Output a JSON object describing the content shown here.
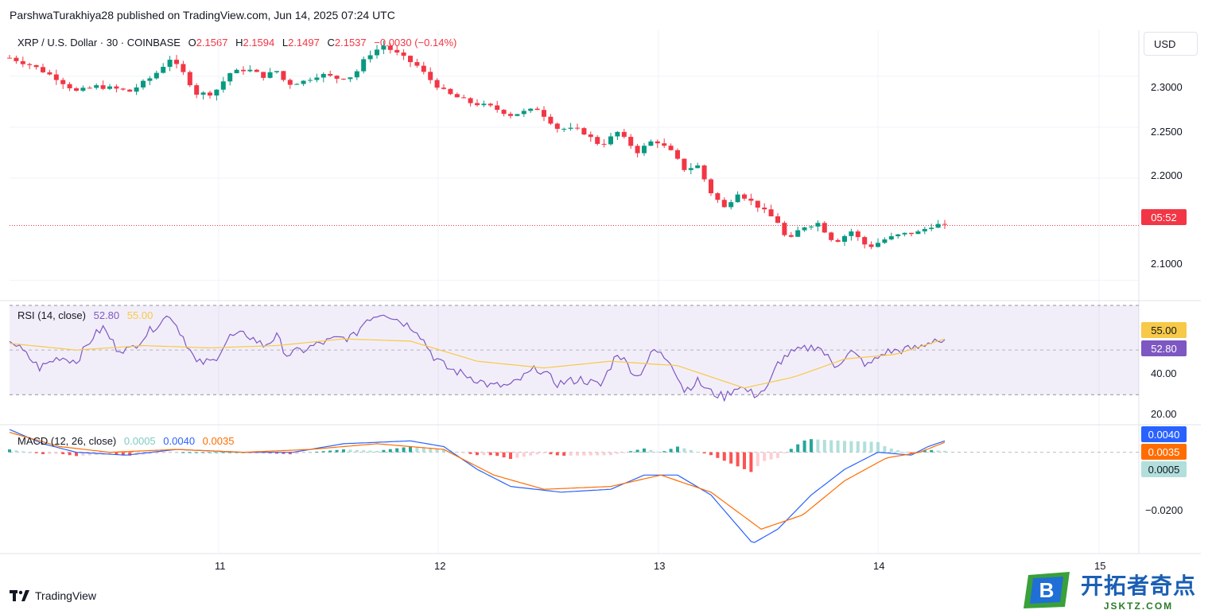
{
  "header": {
    "published": "ParshwaTurakhiya28 published on TradingView.com, Jun 14, 2025 07:24 UTC"
  },
  "symbol": {
    "name": "XRP / U.S. Dollar · 30 · COINBASE",
    "o_label": "O",
    "o_value": "2.1567",
    "h_label": "H",
    "h_value": "2.1594",
    "l_label": "L",
    "l_value": "2.1497",
    "c_label": "C",
    "c_value": "2.1537",
    "change": "−0.0030 (−0.14%)"
  },
  "currency": "USD",
  "countdown": "05:52",
  "rsi": {
    "label": "RSI (14, close)",
    "value": "52.80",
    "ma": "55.00",
    "axis": [
      "40.00",
      "20.00"
    ]
  },
  "macd": {
    "label": "MACD (12, 26, close)",
    "hist": "0.0005",
    "macd": "0.0040",
    "signal": "0.0035",
    "axis": [
      "−0.0200"
    ]
  },
  "price_axis": [
    "2.3000",
    "2.2500",
    "2.2000",
    "2.1000"
  ],
  "x_axis": [
    "11",
    "12",
    "13",
    "14",
    "15"
  ],
  "footer": {
    "brand": "TradingView"
  },
  "watermark": {
    "title": "开拓者奇点",
    "sub": "JSKTZ.COM",
    "logo_letter": "B"
  },
  "colors": {
    "up": "#089981",
    "down": "#f23645",
    "rsi": "#7e57c2",
    "rsi_ma": "#f7c948",
    "macd": "#2962ff",
    "signal": "#ff6d00"
  },
  "chart_data": [
    {
      "type": "candlestick",
      "title": "XRP / U.S. Dollar · 30 · COINBASE",
      "ylim": [
        2.08,
        2.345
      ],
      "x_ticks": [
        "11",
        "12",
        "13",
        "14",
        "15"
      ],
      "last_close": 2.1537,
      "close_path": [
        [
          0,
          2.318
        ],
        [
          14,
          2.31
        ],
        [
          28,
          2.298
        ],
        [
          40,
          2.285
        ],
        [
          52,
          2.29
        ],
        [
          62,
          2.288
        ],
        [
          72,
          2.285
        ],
        [
          86,
          2.3
        ],
        [
          96,
          2.317
        ],
        [
          104,
          2.303
        ],
        [
          112,
          2.283
        ],
        [
          122,
          2.283
        ],
        [
          132,
          2.303
        ],
        [
          142,
          2.307
        ],
        [
          152,
          2.3
        ],
        [
          160,
          2.305
        ],
        [
          166,
          2.292
        ],
        [
          176,
          2.295
        ],
        [
          186,
          2.302
        ],
        [
          196,
          2.298
        ],
        [
          206,
          2.3
        ],
        [
          214,
          2.32
        ],
        [
          224,
          2.33
        ],
        [
          234,
          2.32
        ],
        [
          244,
          2.31
        ],
        [
          254,
          2.293
        ],
        [
          262,
          2.283
        ],
        [
          276,
          2.274
        ],
        [
          288,
          2.27
        ],
        [
          300,
          2.262
        ],
        [
          316,
          2.268
        ],
        [
          328,
          2.249
        ],
        [
          342,
          2.247
        ],
        [
          354,
          2.232
        ],
        [
          364,
          2.245
        ],
        [
          376,
          2.226
        ],
        [
          386,
          2.238
        ],
        [
          396,
          2.226
        ],
        [
          404,
          2.209
        ],
        [
          412,
          2.212
        ],
        [
          420,
          2.186
        ],
        [
          428,
          2.171
        ],
        [
          436,
          2.186
        ],
        [
          446,
          2.175
        ],
        [
          454,
          2.165
        ],
        [
          460,
          2.157
        ],
        [
          466,
          2.137
        ],
        [
          474,
          2.152
        ],
        [
          484,
          2.156
        ],
        [
          494,
          2.137
        ],
        [
          504,
          2.148
        ],
        [
          514,
          2.132
        ],
        [
          524,
          2.14
        ],
        [
          534,
          2.145
        ],
        [
          544,
          2.147
        ],
        [
          554,
          2.155
        ],
        [
          560,
          2.153
        ]
      ]
    },
    {
      "type": "line",
      "title": "RSI (14, close)",
      "ylim": [
        18,
        70
      ],
      "series": [
        {
          "name": "RSI",
          "values_path": [
            [
              0,
              55
            ],
            [
              18,
              42
            ],
            [
              30,
              47
            ],
            [
              40,
              45
            ],
            [
              50,
              56
            ],
            [
              56,
              60
            ],
            [
              64,
              51
            ],
            [
              72,
              50
            ],
            [
              86,
              60
            ],
            [
              96,
              66
            ],
            [
              104,
              56
            ],
            [
              112,
              44
            ],
            [
              122,
              45
            ],
            [
              132,
              56
            ],
            [
              142,
              57
            ],
            [
              152,
              52
            ],
            [
              160,
              56
            ],
            [
              166,
              48
            ],
            [
              176,
              50
            ],
            [
              186,
              53
            ],
            [
              196,
              55
            ],
            [
              206,
              56
            ],
            [
              214,
              64
            ],
            [
              224,
              67
            ],
            [
              234,
              63
            ],
            [
              244,
              59
            ],
            [
              254,
              47
            ],
            [
              262,
              42
            ],
            [
              276,
              38
            ],
            [
              288,
              34
            ],
            [
              300,
              34
            ],
            [
              316,
              42
            ],
            [
              328,
              35
            ],
            [
              342,
              37
            ],
            [
              354,
              34
            ],
            [
              364,
              49
            ],
            [
              376,
              38
            ],
            [
              386,
              50
            ],
            [
              396,
              45
            ],
            [
              404,
              32
            ],
            [
              412,
              36
            ],
            [
              420,
              31
            ],
            [
              428,
              29
            ],
            [
              436,
              34
            ],
            [
              446,
              30
            ],
            [
              454,
              33
            ],
            [
              460,
              44
            ],
            [
              466,
              48
            ],
            [
              474,
              50
            ],
            [
              484,
              52
            ],
            [
              494,
              43
            ],
            [
              504,
              49
            ],
            [
              514,
              43
            ],
            [
              524,
              49
            ],
            [
              534,
              50
            ],
            [
              544,
              51
            ],
            [
              554,
              55
            ],
            [
              560,
              52.8
            ]
          ]
        },
        {
          "name": "RSI-based MA",
          "values_path": [
            [
              0,
              53
            ],
            [
              40,
              50
            ],
            [
              80,
              52
            ],
            [
              120,
              51
            ],
            [
              160,
              52
            ],
            [
              200,
              55
            ],
            [
              240,
              54
            ],
            [
              280,
              45
            ],
            [
              320,
              42
            ],
            [
              360,
              45
            ],
            [
              400,
              43
            ],
            [
              440,
              33
            ],
            [
              470,
              38
            ],
            [
              500,
              46
            ],
            [
              530,
              48
            ],
            [
              560,
              55
            ]
          ]
        }
      ],
      "levels": [
        70,
        50,
        30
      ],
      "axis_ticks": [
        "40.00",
        "20.00"
      ]
    },
    {
      "type": "line",
      "title": "MACD (12, 26, close)",
      "ylim": [
        -0.035,
        0.008
      ],
      "series": [
        {
          "name": "MACD",
          "values_path": [
            [
              0,
              0.008
            ],
            [
              20,
              0.003
            ],
            [
              40,
              0.0
            ],
            [
              70,
              -0.001
            ],
            [
              100,
              0.001
            ],
            [
              140,
              0.0
            ],
            [
              170,
              0.0
            ],
            [
              200,
              0.003
            ],
            [
              240,
              0.004
            ],
            [
              260,
              0.002
            ],
            [
              280,
              -0.006
            ],
            [
              300,
              -0.012
            ],
            [
              330,
              -0.014
            ],
            [
              360,
              -0.013
            ],
            [
              380,
              -0.008
            ],
            [
              400,
              -0.008
            ],
            [
              420,
              -0.015
            ],
            [
              445,
              -0.032
            ],
            [
              460,
              -0.027
            ],
            [
              480,
              -0.015
            ],
            [
              500,
              -0.006
            ],
            [
              520,
              0.0
            ],
            [
              540,
              -0.001
            ],
            [
              550,
              0.002
            ],
            [
              560,
              0.004
            ]
          ]
        },
        {
          "name": "Signal",
          "values_path": [
            [
              0,
              0.007
            ],
            [
              30,
              0.002
            ],
            [
              60,
              0.0
            ],
            [
              100,
              0.001
            ],
            [
              140,
              0.0
            ],
            [
              180,
              0.001
            ],
            [
              220,
              0.003
            ],
            [
              260,
              0.001
            ],
            [
              290,
              -0.008
            ],
            [
              320,
              -0.013
            ],
            [
              360,
              -0.012
            ],
            [
              390,
              -0.008
            ],
            [
              420,
              -0.014
            ],
            [
              450,
              -0.027
            ],
            [
              475,
              -0.022
            ],
            [
              500,
              -0.01
            ],
            [
              525,
              -0.002
            ],
            [
              545,
              0.0
            ],
            [
              560,
              0.0035
            ]
          ]
        }
      ],
      "axis_ticks": [
        "−0.0200"
      ]
    }
  ]
}
